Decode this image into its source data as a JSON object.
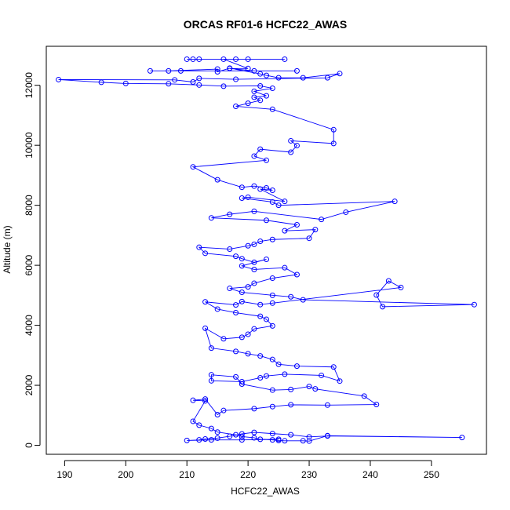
{
  "chart_data": {
    "type": "line",
    "title": "ORCAS RF01-6 HCFC22_AWAS",
    "xlabel": "HCFC22_AWAS",
    "ylabel": "Altitude (m)",
    "xlim": [
      187,
      259
    ],
    "ylim": [
      -300,
      13300
    ],
    "xticks": [
      190,
      200,
      210,
      220,
      230,
      240,
      250
    ],
    "yticks": [
      0,
      2000,
      4000,
      6000,
      8000,
      10000,
      12000
    ],
    "grid": false,
    "markers": "open-circle",
    "series": [
      {
        "color": "#0000ff",
        "points": [
          [
            210,
            12870
          ],
          [
            211,
            12870
          ],
          [
            212,
            12870
          ],
          [
            218,
            12870
          ],
          [
            226,
            12870
          ],
          [
            220,
            12870
          ],
          [
            216,
            12870
          ],
          [
            220,
            12560
          ],
          [
            217,
            12560
          ],
          [
            221,
            12480
          ],
          [
            228,
            12480
          ],
          [
            209,
            12480
          ],
          [
            204,
            12480
          ],
          [
            207,
            12480
          ],
          [
            215,
            12540
          ],
          [
            215,
            12450
          ],
          [
            217,
            12570
          ],
          [
            222,
            12380
          ],
          [
            223,
            12330
          ],
          [
            225,
            12250
          ],
          [
            229,
            12250
          ],
          [
            235,
            12390
          ],
          [
            233,
            12250
          ],
          [
            218,
            12200
          ],
          [
            212,
            12230
          ],
          [
            211,
            12110
          ],
          [
            208,
            12180
          ],
          [
            189,
            12190
          ],
          [
            196,
            12100
          ],
          [
            200,
            12060
          ],
          [
            207,
            12050
          ],
          [
            212,
            12010
          ],
          [
            216,
            11970
          ],
          [
            222,
            11980
          ],
          [
            224,
            11900
          ],
          [
            221,
            11800
          ],
          [
            223,
            11650
          ],
          [
            221,
            11600
          ],
          [
            222,
            11500
          ],
          [
            220,
            11400
          ],
          [
            218,
            11300
          ],
          [
            224,
            11200
          ],
          [
            234,
            10520
          ],
          [
            234,
            10060
          ],
          [
            227,
            10150
          ],
          [
            228,
            9990
          ],
          [
            227,
            9770
          ],
          [
            222,
            9870
          ],
          [
            221,
            9640
          ],
          [
            223,
            9500
          ],
          [
            211,
            9280
          ],
          [
            215,
            8850
          ],
          [
            219,
            8600
          ],
          [
            221,
            8640
          ],
          [
            223,
            8580
          ],
          [
            224,
            8500
          ],
          [
            222,
            8540
          ],
          [
            226,
            8130
          ],
          [
            220,
            8270
          ],
          [
            219,
            8240
          ],
          [
            224,
            8110
          ],
          [
            225,
            8000
          ],
          [
            244,
            8130
          ],
          [
            236,
            7770
          ],
          [
            232,
            7530
          ],
          [
            221,
            7800
          ],
          [
            217,
            7700
          ],
          [
            214,
            7580
          ],
          [
            223,
            7500
          ],
          [
            228,
            7350
          ],
          [
            226,
            7150
          ],
          [
            231,
            7190
          ],
          [
            230,
            6900
          ],
          [
            224,
            6860
          ],
          [
            222,
            6800
          ],
          [
            221,
            6700
          ],
          [
            220,
            6650
          ],
          [
            217,
            6540
          ],
          [
            212,
            6600
          ],
          [
            213,
            6400
          ],
          [
            218,
            6300
          ],
          [
            219,
            6220
          ],
          [
            221,
            6100
          ],
          [
            223,
            6200
          ],
          [
            219,
            5980
          ],
          [
            221,
            5860
          ],
          [
            226,
            5920
          ],
          [
            228,
            5690
          ],
          [
            224,
            5570
          ],
          [
            221,
            5400
          ],
          [
            220,
            5280
          ],
          [
            217,
            5230
          ],
          [
            219,
            5100
          ],
          [
            224,
            5000
          ],
          [
            227,
            4950
          ],
          [
            229,
            4850
          ],
          [
            257,
            4690
          ],
          [
            242,
            4620
          ],
          [
            241,
            5010
          ],
          [
            243,
            5480
          ],
          [
            245,
            5260
          ],
          [
            224,
            4740
          ],
          [
            222,
            4690
          ],
          [
            219,
            4790
          ],
          [
            218,
            4680
          ],
          [
            213,
            4780
          ],
          [
            215,
            4540
          ],
          [
            218,
            4420
          ],
          [
            222,
            4300
          ],
          [
            223,
            4200
          ],
          [
            224,
            3980
          ],
          [
            221,
            3880
          ],
          [
            220,
            3700
          ],
          [
            219,
            3600
          ],
          [
            216,
            3550
          ],
          [
            213,
            3900
          ],
          [
            214,
            3240
          ],
          [
            218,
            3130
          ],
          [
            220,
            3050
          ],
          [
            222,
            2980
          ],
          [
            224,
            2860
          ],
          [
            225,
            2700
          ],
          [
            228,
            2640
          ],
          [
            234,
            2610
          ],
          [
            235,
            2140
          ],
          [
            232,
            2330
          ],
          [
            226,
            2370
          ],
          [
            223,
            2310
          ],
          [
            222,
            2250
          ],
          [
            219,
            2120
          ],
          [
            214,
            2150
          ],
          [
            214,
            2350
          ],
          [
            218,
            2280
          ],
          [
            219,
            2040
          ],
          [
            224,
            1840
          ],
          [
            227,
            1860
          ],
          [
            230,
            1960
          ],
          [
            231,
            1880
          ],
          [
            239,
            1640
          ],
          [
            241,
            1360
          ],
          [
            233,
            1340
          ],
          [
            227,
            1350
          ],
          [
            224,
            1290
          ],
          [
            221,
            1220
          ],
          [
            216,
            1160
          ],
          [
            215,
            1020
          ],
          [
            213,
            1540
          ],
          [
            211,
            1500
          ],
          [
            213,
            1480
          ],
          [
            211,
            800
          ],
          [
            212,
            670
          ],
          [
            214,
            560
          ],
          [
            215,
            440
          ],
          [
            218,
            350
          ],
          [
            219,
            290
          ],
          [
            221,
            250
          ],
          [
            222,
            200
          ],
          [
            224,
            180
          ],
          [
            225,
            160
          ],
          [
            226,
            150
          ],
          [
            229,
            150
          ],
          [
            230,
            140
          ],
          [
            233,
            320
          ],
          [
            255,
            260
          ],
          [
            233,
            310
          ],
          [
            230,
            280
          ],
          [
            227,
            350
          ],
          [
            224,
            390
          ],
          [
            221,
            430
          ],
          [
            219,
            380
          ],
          [
            217,
            300
          ],
          [
            215,
            240
          ],
          [
            213,
            210
          ],
          [
            212,
            180
          ],
          [
            210,
            160
          ],
          [
            214,
            180
          ],
          [
            219,
            180
          ],
          [
            225,
            200
          ]
        ]
      }
    ]
  }
}
